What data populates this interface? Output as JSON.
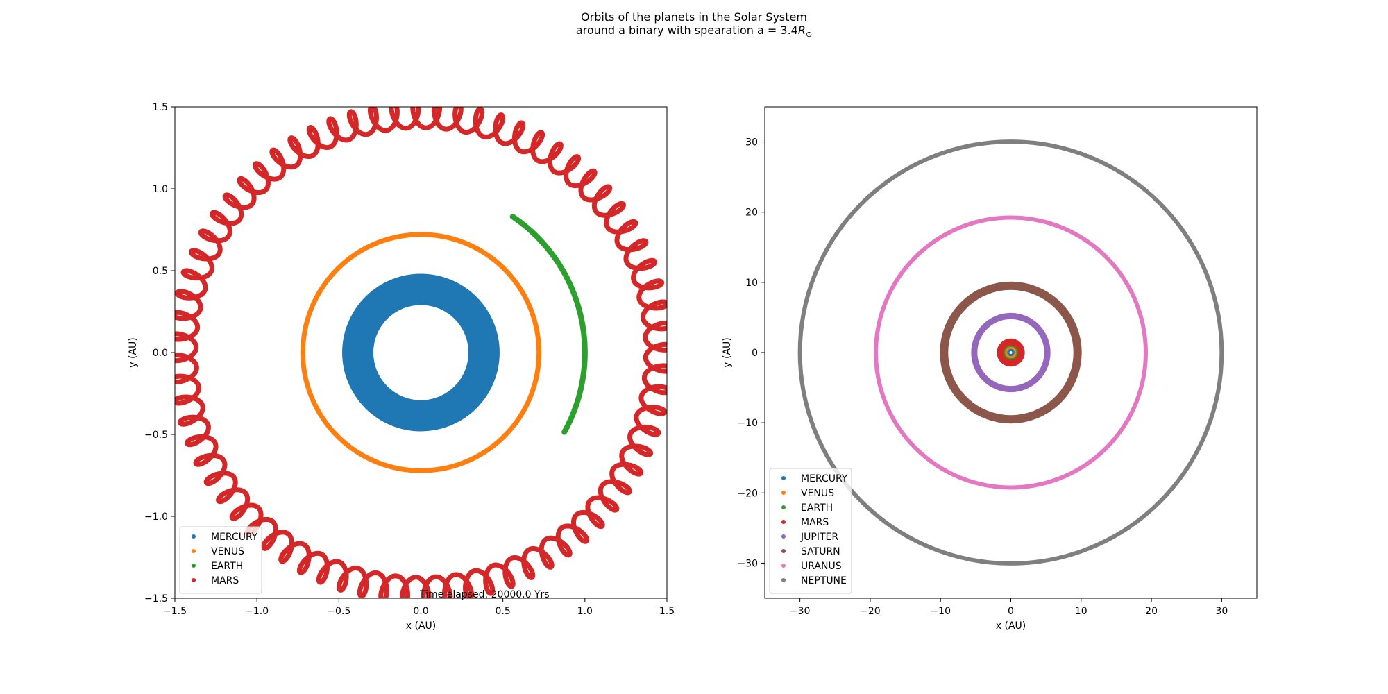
{
  "figure": {
    "title_line_1": "Orbits of the planets in the Solar System",
    "title_line_2_prefix": "around a binary with spearation a = 3.4",
    "title_line_2_symbol": "R",
    "title_line_2_subscript": "⊙"
  },
  "chart_data": [
    {
      "type": "scatter",
      "xlabel": "x (AU)",
      "ylabel": "y (AU)",
      "xlim": [
        -1.5,
        1.5
      ],
      "ylim": [
        -1.5,
        1.5
      ],
      "xticks": [
        -1.5,
        -1.0,
        -0.5,
        0.0,
        0.5,
        1.0,
        1.5
      ],
      "xtick_labels": [
        "−1.5",
        "−1.0",
        "−0.5",
        "0.0",
        "0.5",
        "1.0",
        "1.5"
      ],
      "yticks": [
        -1.5,
        -1.0,
        -0.5,
        0.0,
        0.5,
        1.0,
        1.5
      ],
      "ytick_labels": [
        "−1.5",
        "−1.0",
        "−0.5",
        "0.0",
        "0.5",
        "1.0",
        "1.5"
      ],
      "grid": false,
      "legend_position": "lower-left",
      "annotation": "Time elapsed: 20000.0 Yrs",
      "series": [
        {
          "name": "MERCURY",
          "color": "#1f77b4",
          "shape": "annulus",
          "center": [
            0.0,
            0.0
          ],
          "inner_radius": 0.29,
          "outer_radius": 0.48
        },
        {
          "name": "VENUS",
          "color": "#ff7f0e",
          "shape": "ring",
          "center": [
            0.0,
            0.0
          ],
          "radius": 0.72
        },
        {
          "name": "EARTH",
          "color": "#2ca02c",
          "shape": "arc",
          "center": [
            0.0,
            0.0
          ],
          "radius": 1.0,
          "start_angle_deg": 56,
          "end_angle_deg": -29
        },
        {
          "name": "MARS",
          "color": "#d62728",
          "shape": "precessing-loops",
          "center": [
            0.0,
            0.0
          ],
          "radius": 1.45
        }
      ]
    },
    {
      "type": "scatter",
      "xlabel": "x (AU)",
      "ylabel": "y (AU)",
      "xlim": [
        -35,
        35
      ],
      "ylim": [
        -35,
        35
      ],
      "xticks": [
        -30,
        -20,
        -10,
        0,
        10,
        20,
        30
      ],
      "xtick_labels": [
        "−30",
        "−20",
        "−10",
        "0",
        "10",
        "20",
        "30"
      ],
      "yticks": [
        -30,
        -20,
        -10,
        0,
        10,
        20,
        30
      ],
      "ytick_labels": [
        "−30",
        "−20",
        "−10",
        "0",
        "10",
        "20",
        "30"
      ],
      "grid": false,
      "legend_position": "lower-left",
      "series": [
        {
          "name": "MERCURY",
          "color": "#1f77b4",
          "radius": 0.39
        },
        {
          "name": "VENUS",
          "color": "#ff7f0e",
          "radius": 0.72
        },
        {
          "name": "EARTH",
          "color": "#2ca02c",
          "radius": 1.0
        },
        {
          "name": "MARS",
          "color": "#d62728",
          "radius": 1.5
        },
        {
          "name": "JUPITER",
          "color": "#9467bd",
          "radius": 5.2
        },
        {
          "name": "SATURN",
          "color": "#8c564b",
          "radius": 9.5
        },
        {
          "name": "URANUS",
          "color": "#e377c2",
          "radius": 19.2
        },
        {
          "name": "NEPTUNE",
          "color": "#7f7f7f",
          "radius": 30.0
        }
      ]
    }
  ]
}
